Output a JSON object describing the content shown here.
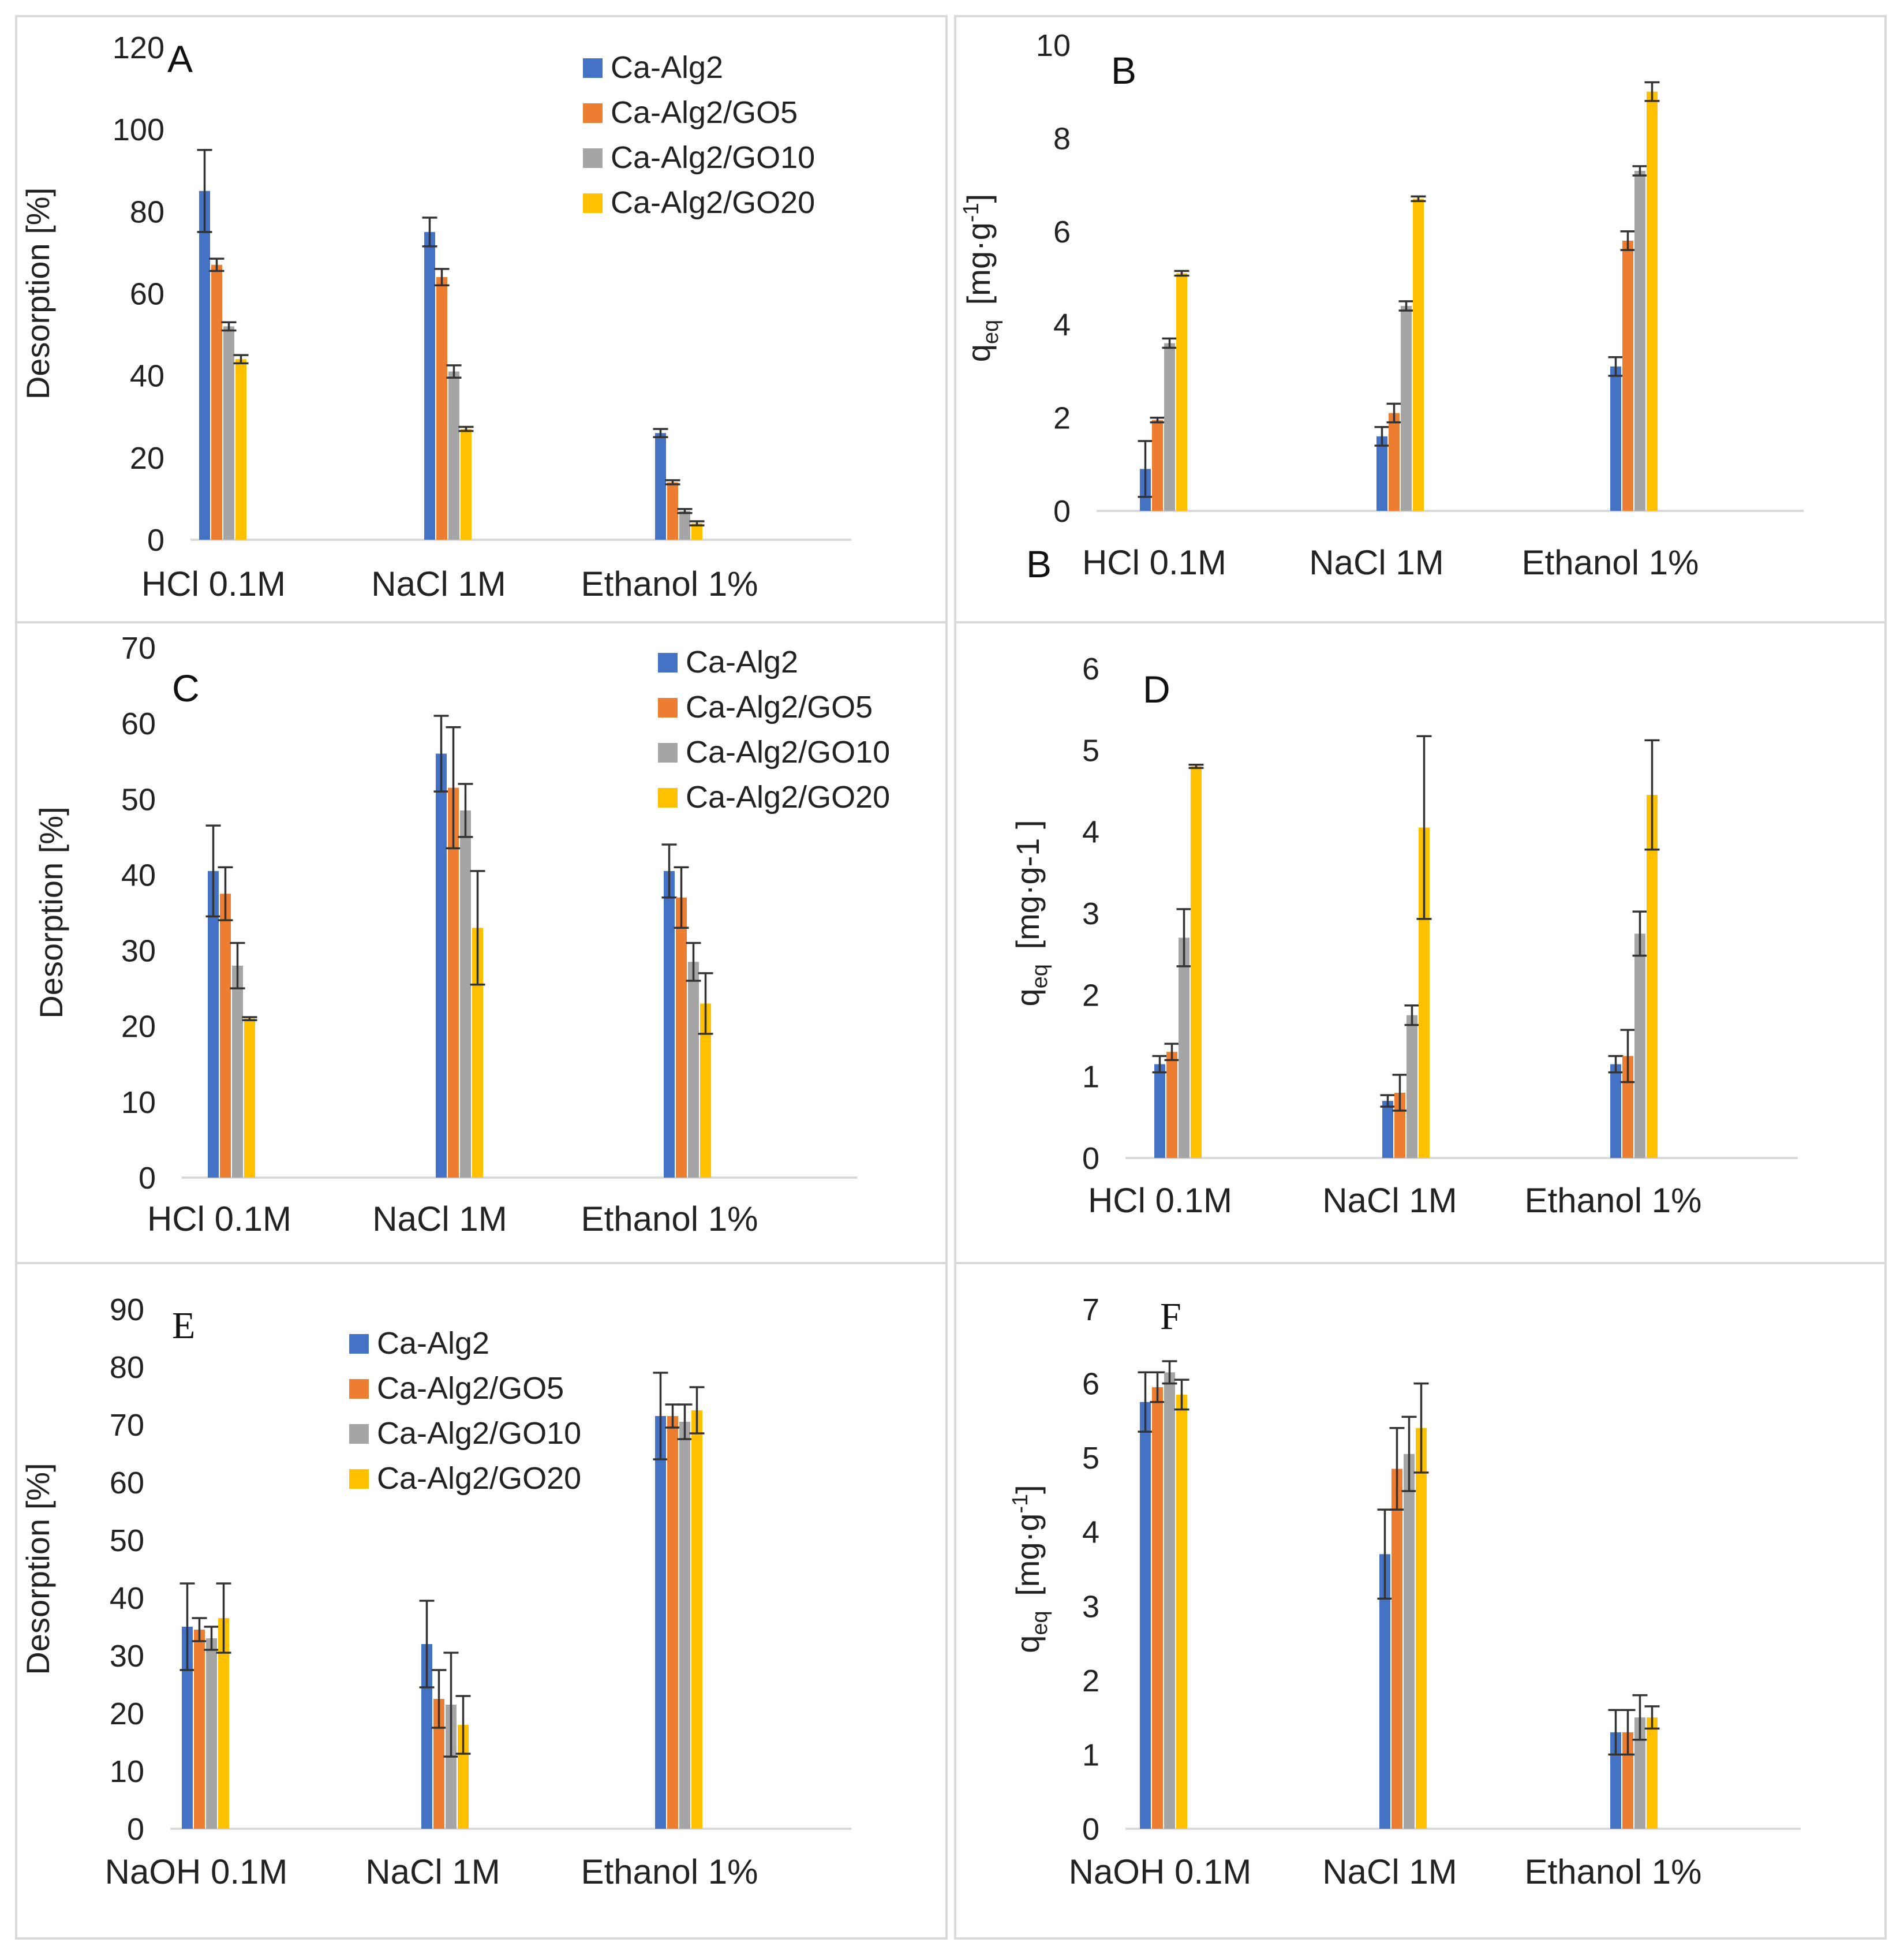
{
  "chart_data": [
    {
      "id": "A",
      "panel_label": "A",
      "type": "bar",
      "ylabel": "Desorption [%]",
      "ylabel_type": "desorption",
      "ylim": [
        0,
        120
      ],
      "yticks": [
        0,
        20,
        40,
        60,
        80,
        100,
        120
      ],
      "categories": [
        "HCl 0.1M",
        "NaCl 1M",
        "Ethanol 1%"
      ],
      "extra_label": "",
      "legend": "top-right",
      "series": [
        {
          "name": "Ca-Alg2",
          "color": "#4472c4",
          "values": [
            85,
            75,
            26
          ],
          "errors": [
            10,
            3.5,
            1
          ]
        },
        {
          "name": "Ca-Alg2/GO5",
          "color": "#ed7d31",
          "values": [
            67,
            64,
            14
          ],
          "errors": [
            1.5,
            2,
            0.5
          ]
        },
        {
          "name": "Ca-Alg2/GO10",
          "color": "#a5a5a5",
          "values": [
            52,
            41,
            7
          ],
          "errors": [
            1,
            1.5,
            0.5
          ]
        },
        {
          "name": "Ca-Alg2/GO20",
          "color": "#ffc000",
          "values": [
            44,
            27,
            4
          ],
          "errors": [
            1,
            0.5,
            0.5
          ]
        }
      ]
    },
    {
      "id": "B",
      "panel_label": "B",
      "type": "bar",
      "ylabel": "q",
      "ylabel_sub": "eq",
      "ylabel_unit": "[mg·g",
      "ylabel_sup": "-1",
      "ylabel_end": "]",
      "ylabel_type": "q_sup",
      "ylim": [
        0,
        10
      ],
      "yticks": [
        0,
        2,
        4,
        6,
        8,
        10
      ],
      "categories": [
        "HCl 0.1M",
        "NaCl 1M",
        "Ethanol 1%"
      ],
      "extra_label": "B",
      "legend": "none",
      "series": [
        {
          "name": "Ca-Alg2",
          "color": "#4472c4",
          "values": [
            0.9,
            1.6,
            3.1
          ],
          "errors": [
            0.6,
            0.2,
            0.2
          ]
        },
        {
          "name": "Ca-Alg2/GO5",
          "color": "#ed7d31",
          "values": [
            1.95,
            2.1,
            5.8
          ],
          "errors": [
            0.05,
            0.2,
            0.2
          ]
        },
        {
          "name": "Ca-Alg2/GO10",
          "color": "#a5a5a5",
          "values": [
            3.6,
            4.4,
            7.3
          ],
          "errors": [
            0.1,
            0.1,
            0.1
          ]
        },
        {
          "name": "Ca-Alg2/GO20",
          "color": "#ffc000",
          "values": [
            5.1,
            6.7,
            9.0
          ],
          "errors": [
            0.05,
            0.05,
            0.2
          ]
        }
      ]
    },
    {
      "id": "C",
      "panel_label": "C",
      "type": "bar",
      "ylabel": "Desorption [%]",
      "ylabel_type": "desorption",
      "ylim": [
        0,
        70
      ],
      "yticks": [
        0,
        10,
        20,
        30,
        40,
        50,
        60,
        70
      ],
      "categories": [
        "HCl 0.1M",
        "NaCl 1M",
        "Ethanol 1%"
      ],
      "extra_label": "",
      "legend": "top-right",
      "series": [
        {
          "name": "Ca-Alg2",
          "color": "#4472c4",
          "values": [
            40.5,
            56,
            40.5
          ],
          "errors": [
            6,
            5,
            3.5
          ]
        },
        {
          "name": "Ca-Alg2/GO5",
          "color": "#ed7d31",
          "values": [
            37.5,
            51.5,
            37
          ],
          "errors": [
            3.5,
            8,
            4
          ]
        },
        {
          "name": "Ca-Alg2/GO10",
          "color": "#a5a5a5",
          "values": [
            28,
            48.5,
            28.5
          ],
          "errors": [
            3,
            3.5,
            2.5
          ]
        },
        {
          "name": "Ca-Alg2/GO20",
          "color": "#ffc000",
          "values": [
            21,
            33,
            23
          ],
          "errors": [
            0.2,
            7.5,
            4
          ]
        }
      ]
    },
    {
      "id": "D",
      "panel_label": "D",
      "type": "bar",
      "ylabel": "q",
      "ylabel_sub": "eq",
      "ylabel_unit": "[mg·g-1 ]",
      "ylabel_type": "q_plain",
      "ylim": [
        0,
        6
      ],
      "yticks": [
        0,
        1,
        2,
        3,
        4,
        5,
        6
      ],
      "categories": [
        "HCl 0.1M",
        "NaCl 1M",
        "Ethanol 1%"
      ],
      "extra_label": "",
      "legend": "none",
      "series": [
        {
          "name": "Ca-Alg2",
          "color": "#4472c4",
          "values": [
            1.15,
            0.7,
            1.15
          ],
          "errors": [
            0.1,
            0.07,
            0.1
          ]
        },
        {
          "name": "Ca-Alg2/GO5",
          "color": "#ed7d31",
          "values": [
            1.3,
            0.8,
            1.25
          ],
          "errors": [
            0.1,
            0.22,
            0.32
          ]
        },
        {
          "name": "Ca-Alg2/GO10",
          "color": "#a5a5a5",
          "values": [
            2.7,
            1.75,
            2.75
          ],
          "errors": [
            0.35,
            0.12,
            0.27
          ]
        },
        {
          "name": "Ca-Alg2/GO20",
          "color": "#ffc000",
          "values": [
            4.8,
            4.05,
            4.45
          ],
          "errors": [
            0.02,
            1.12,
            0.67
          ]
        }
      ]
    },
    {
      "id": "E",
      "panel_label": "E",
      "type": "bar",
      "ylabel": "Desorption [%]",
      "ylabel_type": "desorption",
      "ylim": [
        0,
        90
      ],
      "yticks": [
        0,
        10,
        20,
        30,
        40,
        50,
        60,
        70,
        80,
        90
      ],
      "categories": [
        "NaOH 0.1M",
        "NaCl 1M",
        "Ethanol 1%"
      ],
      "extra_label": "",
      "legend": "top-center",
      "series": [
        {
          "name": "Ca-Alg2",
          "color": "#4472c4",
          "values": [
            35,
            32,
            71.5
          ],
          "errors": [
            7.5,
            7.5,
            7.5
          ]
        },
        {
          "name": "Ca-Alg2/GO5",
          "color": "#ed7d31",
          "values": [
            34.5,
            22.5,
            71.5
          ],
          "errors": [
            2,
            5,
            2
          ]
        },
        {
          "name": "Ca-Alg2/GO10",
          "color": "#a5a5a5",
          "values": [
            33,
            21.5,
            70.5
          ],
          "errors": [
            2,
            9,
            3
          ]
        },
        {
          "name": "Ca-Alg2/GO20",
          "color": "#ffc000",
          "values": [
            36.5,
            18,
            72.5
          ],
          "errors": [
            6,
            5,
            4
          ]
        }
      ]
    },
    {
      "id": "F",
      "panel_label": "F",
      "type": "bar",
      "ylabel": "q",
      "ylabel_sub": "eq",
      "ylabel_unit": "[mg·g",
      "ylabel_sup": "-1",
      "ylabel_end": "]",
      "ylabel_type": "q_sup",
      "ylim": [
        0,
        7
      ],
      "yticks": [
        0,
        1,
        2,
        3,
        4,
        5,
        6,
        7
      ],
      "categories": [
        "NaOH 0.1M",
        "NaCl 1M",
        "Ethanol 1%"
      ],
      "extra_label": "",
      "legend": "none",
      "series": [
        {
          "name": "Ca-Alg2",
          "color": "#4472c4",
          "values": [
            5.75,
            3.7,
            1.3
          ],
          "errors": [
            0.4,
            0.6,
            0.3
          ]
        },
        {
          "name": "Ca-Alg2/GO5",
          "color": "#ed7d31",
          "values": [
            5.95,
            4.85,
            1.3
          ],
          "errors": [
            0.2,
            0.55,
            0.3
          ]
        },
        {
          "name": "Ca-Alg2/GO10",
          "color": "#a5a5a5",
          "values": [
            6.15,
            5.05,
            1.5
          ],
          "errors": [
            0.15,
            0.5,
            0.3
          ]
        },
        {
          "name": "Ca-Alg2/GO20",
          "color": "#ffc000",
          "values": [
            5.85,
            5.4,
            1.5
          ],
          "errors": [
            0.2,
            0.6,
            0.15
          ]
        }
      ]
    }
  ]
}
